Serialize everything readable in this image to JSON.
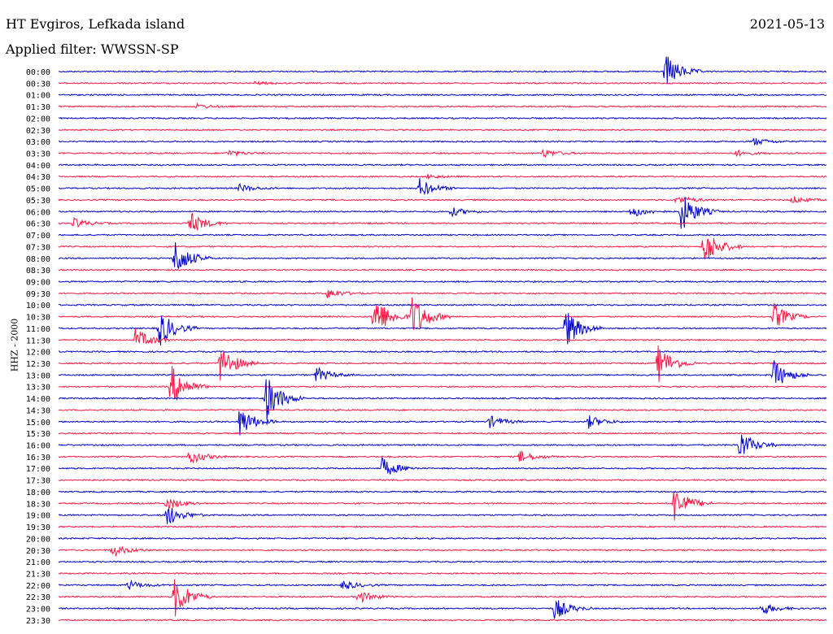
{
  "header": {
    "station": "HT Evgiros, Lefkada island",
    "date": "2021-05-13",
    "filter": "Applied filter: WWSSN-SP"
  },
  "colors": {
    "even_hour": "#0000cc",
    "half_hour": "#ff1744"
  },
  "chart_data": {
    "type": "line",
    "title": "HT Evgiros, Lefkada island",
    "ylabel": "HHZ - 2000",
    "rows": [
      "00:00",
      "00:30",
      "01:00",
      "01:30",
      "02:00",
      "02:30",
      "03:00",
      "03:30",
      "04:00",
      "04:30",
      "05:00",
      "05:30",
      "06:00",
      "06:30",
      "07:00",
      "07:30",
      "08:00",
      "08:30",
      "09:00",
      "09:30",
      "10:00",
      "10:30",
      "11:00",
      "11:30",
      "12:00",
      "12:30",
      "13:00",
      "13:30",
      "14:00",
      "14:30",
      "15:00",
      "15:30",
      "16:00",
      "16:30",
      "17:00",
      "17:30",
      "18:00",
      "18:30",
      "19:00",
      "19:30",
      "20:00",
      "20:30",
      "21:00",
      "21:30",
      "22:00",
      "22:30",
      "23:00",
      "23:30"
    ],
    "grid": false,
    "events": [
      {
        "row": "00:00",
        "t": 0.79,
        "amp": 22
      },
      {
        "row": "00:30",
        "t": 0.255,
        "amp": 2
      },
      {
        "row": "01:30",
        "t": 0.18,
        "amp": 3
      },
      {
        "row": "03:00",
        "t": 0.905,
        "amp": 5
      },
      {
        "row": "03:30",
        "t": 0.22,
        "amp": 4
      },
      {
        "row": "03:30",
        "t": 0.63,
        "amp": 5
      },
      {
        "row": "03:30",
        "t": 0.88,
        "amp": 4
      },
      {
        "row": "04:30",
        "t": 0.48,
        "amp": 3
      },
      {
        "row": "05:00",
        "t": 0.47,
        "amp": 12
      },
      {
        "row": "05:00",
        "t": 0.235,
        "amp": 5
      },
      {
        "row": "05:30",
        "t": 0.805,
        "amp": 6
      },
      {
        "row": "05:30",
        "t": 0.955,
        "amp": 5
      },
      {
        "row": "06:00",
        "t": 0.81,
        "amp": 26
      },
      {
        "row": "06:00",
        "t": 0.745,
        "amp": 8
      },
      {
        "row": "06:00",
        "t": 0.51,
        "amp": 6
      },
      {
        "row": "06:30",
        "t": 0.17,
        "amp": 15
      },
      {
        "row": "06:30",
        "t": 0.02,
        "amp": 6
      },
      {
        "row": "07:30",
        "t": 0.84,
        "amp": 25
      },
      {
        "row": "08:00",
        "t": 0.15,
        "amp": 26
      },
      {
        "row": "09:30",
        "t": 0.35,
        "amp": 6
      },
      {
        "row": "10:30",
        "t": 0.46,
        "amp": 30
      },
      {
        "row": "10:30",
        "t": 0.41,
        "amp": 30
      },
      {
        "row": "10:30",
        "t": 0.93,
        "amp": 18
      },
      {
        "row": "11:00",
        "t": 0.13,
        "amp": 25
      },
      {
        "row": "11:00",
        "t": 0.66,
        "amp": 25
      },
      {
        "row": "11:30",
        "t": 0.1,
        "amp": 14
      },
      {
        "row": "12:30",
        "t": 0.78,
        "amp": 25
      },
      {
        "row": "12:30",
        "t": 0.21,
        "amp": 25
      },
      {
        "row": "13:00",
        "t": 0.93,
        "amp": 20
      },
      {
        "row": "13:00",
        "t": 0.335,
        "amp": 10
      },
      {
        "row": "13:30",
        "t": 0.145,
        "amp": 30
      },
      {
        "row": "14:00",
        "t": 0.27,
        "amp": 30
      },
      {
        "row": "15:00",
        "t": 0.235,
        "amp": 20
      },
      {
        "row": "15:00",
        "t": 0.56,
        "amp": 8
      },
      {
        "row": "15:00",
        "t": 0.69,
        "amp": 8
      },
      {
        "row": "16:00",
        "t": 0.885,
        "amp": 20
      },
      {
        "row": "16:30",
        "t": 0.17,
        "amp": 10
      },
      {
        "row": "16:30",
        "t": 0.6,
        "amp": 8
      },
      {
        "row": "17:00",
        "t": 0.42,
        "amp": 14
      },
      {
        "row": "18:30",
        "t": 0.8,
        "amp": 25
      },
      {
        "row": "18:30",
        "t": 0.14,
        "amp": 8
      },
      {
        "row": "19:00",
        "t": 0.14,
        "amp": 15
      },
      {
        "row": "20:30",
        "t": 0.07,
        "amp": 8
      },
      {
        "row": "22:00",
        "t": 0.09,
        "amp": 6
      },
      {
        "row": "22:00",
        "t": 0.37,
        "amp": 6
      },
      {
        "row": "22:30",
        "t": 0.15,
        "amp": 28
      },
      {
        "row": "22:30",
        "t": 0.39,
        "amp": 8
      },
      {
        "row": "23:00",
        "t": 0.645,
        "amp": 15
      },
      {
        "row": "23:00",
        "t": 0.915,
        "amp": 8
      }
    ]
  }
}
